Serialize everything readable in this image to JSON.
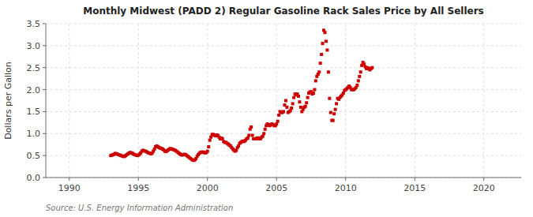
{
  "chart_data": {
    "type": "scatter",
    "title": "Monthly Midwest (PADD 2) Regular Gasoline Rack Sales Price by All Sellers",
    "y_label": "Dollars per Gallon",
    "source": "Source: U.S. Energy Information Administration",
    "color": "#cc0000",
    "marker": "square",
    "grid": true,
    "xlim": [
      1988.3,
      2022.7
    ],
    "xticks": [
      1990,
      1995,
      2000,
      2005,
      2010,
      2015,
      2020
    ],
    "ylim": [
      0.0,
      3.5
    ],
    "yticks": [
      {
        "value": 0,
        "label": "0.0"
      },
      0.5,
      {
        "value": 1,
        "label": "1.0"
      },
      1.5,
      {
        "value": 2,
        "label": "2.0"
      },
      2.5,
      {
        "value": 3,
        "label": "3.0"
      },
      3.5
    ],
    "x": [
      1993,
      1993.0833333333,
      1993.1666666667,
      1993.25,
      1993.3333333333,
      1993.4166666667,
      1993.5,
      1993.5833333333,
      1993.6666666667,
      1993.75,
      1993.8333333333,
      1993.9166666667,
      1994,
      1994.0833333333,
      1994.1666666667,
      1994.25,
      1994.3333333333,
      1994.4166666667,
      1994.5,
      1994.5833333333,
      1994.6666666667,
      1994.75,
      1994.8333333333,
      1994.9166666667,
      1995,
      1995.0833333333,
      1995.1666666667,
      1995.25,
      1995.3333333333,
      1995.4166666667,
      1995.5,
      1995.5833333333,
      1995.6666666667,
      1995.75,
      1995.8333333333,
      1995.9166666667,
      1996,
      1996.0833333333,
      1996.1666666667,
      1996.25,
      1996.3333333333,
      1996.4166666667,
      1996.5,
      1996.5833333333,
      1996.6666666667,
      1996.75,
      1996.8333333333,
      1996.9166666667,
      1997,
      1997.0833333333,
      1997.1666666667,
      1997.25,
      1997.3333333333,
      1997.4166666667,
      1997.5,
      1997.5833333333,
      1997.6666666667,
      1997.75,
      1997.8333333333,
      1997.9166666667,
      1998,
      1998.0833333333,
      1998.1666666667,
      1998.25,
      1998.3333333333,
      1998.4166666667,
      1998.5,
      1998.5833333333,
      1998.6666666667,
      1998.75,
      1998.8333333333,
      1998.9166666667,
      1999,
      1999.0833333333,
      1999.1666666667,
      1999.25,
      1999.3333333333,
      1999.4166666667,
      1999.5,
      1999.5833333333,
      1999.6666666667,
      1999.75,
      1999.8333333333,
      1999.9166666667,
      2000,
      2000.0833333333,
      2000.1666666667,
      2000.25,
      2000.3333333333,
      2000.4166666667,
      2000.5,
      2000.5833333333,
      2000.6666666667,
      2000.75,
      2000.8333333333,
      2000.9166666667,
      2001,
      2001.0833333333,
      2001.1666666667,
      2001.25,
      2001.3333333333,
      2001.4166666667,
      2001.5,
      2001.5833333333,
      2001.6666666667,
      2001.75,
      2001.8333333333,
      2001.9166666667,
      2002,
      2002.0833333333,
      2002.1666666667,
      2002.25,
      2002.3333333333,
      2002.4166666667,
      2002.5,
      2002.5833333333,
      2002.6666666667,
      2002.75,
      2002.8333333333,
      2002.9166666667,
      2003,
      2003.0833333333,
      2003.1666666667,
      2003.25,
      2003.3333333333,
      2003.4166666667,
      2003.5,
      2003.5833333333,
      2003.6666666667,
      2003.75,
      2003.8333333333,
      2003.9166666667,
      2004,
      2004.0833333333,
      2004.1666666667,
      2004.25,
      2004.3333333333,
      2004.4166666667,
      2004.5,
      2004.5833333333,
      2004.6666666667,
      2004.75,
      2004.8333333333,
      2004.9166666667,
      2005,
      2005.0833333333,
      2005.1666666667,
      2005.25,
      2005.3333333333,
      2005.4166666667,
      2005.5,
      2005.5833333333,
      2005.6666666667,
      2005.75,
      2005.8333333333,
      2005.9166666667,
      2006,
      2006.0833333333,
      2006.1666666667,
      2006.25,
      2006.3333333333,
      2006.4166666667,
      2006.5,
      2006.5833333333,
      2006.6666666667,
      2006.75,
      2006.8333333333,
      2006.9166666667,
      2007,
      2007.0833333333,
      2007.1666666667,
      2007.25,
      2007.3333333333,
      2007.4166666667,
      2007.5,
      2007.5833333333,
      2007.6666666667,
      2007.75,
      2007.8333333333,
      2007.9166666667,
      2008,
      2008.0833333333,
      2008.1666666667,
      2008.25,
      2008.3333333333,
      2008.4166666667,
      2008.5,
      2008.5833333333,
      2008.6666666667,
      2008.75,
      2008.8333333333,
      2008.9166666667,
      2009,
      2009.0833333333,
      2009.1666666667,
      2009.25,
      2009.3333333333,
      2009.4166666667,
      2009.5,
      2009.5833333333,
      2009.6666666667,
      2009.75,
      2009.8333333333,
      2009.9166666667,
      2010,
      2010.0833333333,
      2010.1666666667,
      2010.25,
      2010.3333333333,
      2010.4166666667,
      2010.5,
      2010.5833333333,
      2010.6666666667,
      2010.75,
      2010.8333333333,
      2010.9166666667,
      2011,
      2011.0833333333,
      2011.1666666667,
      2011.25,
      2011.3333333333,
      2011.4166666667,
      2011.5,
      2011.5833333333,
      2011.6666666667,
      2011.75,
      2011.8333333333,
      2011.9166666667
    ],
    "values": [
      0.5,
      0.51,
      0.52,
      0.53,
      0.55,
      0.54,
      0.53,
      0.52,
      0.51,
      0.5,
      0.49,
      0.48,
      0.48,
      0.5,
      0.52,
      0.54,
      0.56,
      0.57,
      0.56,
      0.55,
      0.53,
      0.52,
      0.51,
      0.5,
      0.51,
      0.53,
      0.56,
      0.6,
      0.62,
      0.61,
      0.6,
      0.59,
      0.57,
      0.56,
      0.55,
      0.54,
      0.56,
      0.6,
      0.65,
      0.7,
      0.72,
      0.7,
      0.68,
      0.67,
      0.66,
      0.65,
      0.63,
      0.6,
      0.59,
      0.61,
      0.63,
      0.65,
      0.66,
      0.65,
      0.64,
      0.63,
      0.62,
      0.6,
      0.58,
      0.56,
      0.54,
      0.52,
      0.51,
      0.52,
      0.53,
      0.52,
      0.5,
      0.48,
      0.46,
      0.44,
      0.42,
      0.4,
      0.39,
      0.4,
      0.43,
      0.48,
      0.52,
      0.55,
      0.57,
      0.58,
      0.58,
      0.57,
      0.56,
      0.57,
      0.6,
      0.7,
      0.85,
      0.92,
      0.98,
      0.98,
      0.96,
      0.95,
      0.97,
      0.96,
      0.92,
      0.88,
      0.9,
      0.88,
      0.82,
      0.8,
      0.8,
      0.78,
      0.76,
      0.74,
      0.72,
      0.68,
      0.65,
      0.62,
      0.6,
      0.62,
      0.68,
      0.72,
      0.78,
      0.8,
      0.82,
      0.83,
      0.82,
      0.85,
      0.88,
      0.9,
      0.96,
      1.1,
      1.15,
      0.96,
      0.88,
      0.88,
      0.88,
      0.9,
      0.9,
      0.88,
      0.88,
      0.92,
      0.94,
      1.0,
      1.1,
      1.18,
      1.22,
      1.2,
      1.18,
      1.2,
      1.22,
      1.2,
      1.18,
      1.18,
      1.22,
      1.28,
      1.42,
      1.5,
      1.48,
      1.48,
      1.5,
      1.65,
      1.75,
      1.6,
      1.48,
      1.5,
      1.52,
      1.58,
      1.68,
      1.82,
      1.9,
      1.88,
      1.9,
      1.85,
      1.72,
      1.6,
      1.5,
      1.55,
      1.6,
      1.62,
      1.7,
      1.82,
      1.92,
      1.95,
      1.95,
      1.9,
      1.92,
      2.0,
      2.2,
      2.3,
      2.35,
      2.4,
      2.6,
      2.8,
      3.05,
      3.35,
      3.3,
      3.1,
      2.9,
      2.4,
      1.8,
      1.48,
      1.3,
      1.3,
      1.45,
      1.55,
      1.68,
      1.8,
      1.78,
      1.82,
      1.85,
      1.88,
      1.92,
      1.98,
      2.0,
      2.02,
      2.05,
      2.08,
      2.05,
      2.0,
      2.0,
      2.0,
      2.02,
      2.05,
      2.1,
      2.2,
      2.3,
      2.4,
      2.55,
      2.62,
      2.58,
      2.52,
      2.48,
      2.5,
      2.48,
      2.45,
      2.48,
      2.5
    ]
  }
}
